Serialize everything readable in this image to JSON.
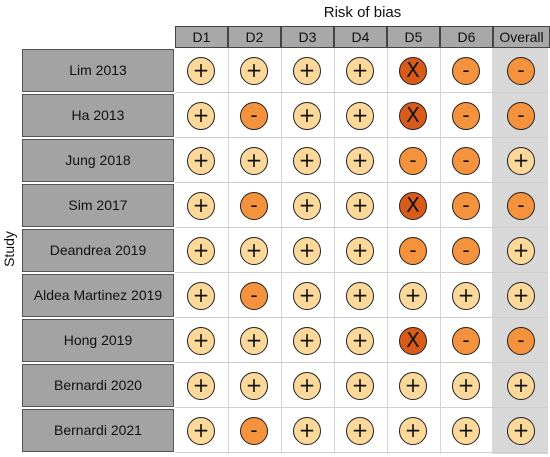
{
  "title": "Risk of bias",
  "ylabel": "Study",
  "columns": [
    "D1",
    "D2",
    "D3",
    "D4",
    "D5",
    "D6",
    "Overall"
  ],
  "judgement_styles": {
    "+": {
      "class": "low",
      "icon": "plus-icon",
      "color": "#fcd99a"
    },
    "-": {
      "class": "some",
      "icon": "minus-icon",
      "color": "#f5923e"
    },
    "X": {
      "class": "high",
      "icon": "x-icon",
      "color": "#d95b1a"
    }
  },
  "chart_data": {
    "type": "table",
    "rows": [
      {
        "study": "Lim 2013",
        "judgements": [
          "+",
          "+",
          "+",
          "+",
          "X",
          "-",
          "-"
        ]
      },
      {
        "study": "Ha 2013",
        "judgements": [
          "+",
          "-",
          "+",
          "+",
          "X",
          "-",
          "-"
        ]
      },
      {
        "study": "Jung 2018",
        "judgements": [
          "+",
          "+",
          "+",
          "+",
          "-",
          "-",
          "+"
        ]
      },
      {
        "study": "Sim 2017",
        "judgements": [
          "+",
          "-",
          "+",
          "+",
          "X",
          "-",
          "-"
        ]
      },
      {
        "study": "Deandrea 2019",
        "judgements": [
          "+",
          "+",
          "+",
          "+",
          "-",
          "-",
          "+"
        ]
      },
      {
        "study": "Aldea Martinez 2019",
        "judgements": [
          "+",
          "-",
          "+",
          "+",
          "+",
          "+",
          "+"
        ]
      },
      {
        "study": "Hong 2019",
        "judgements": [
          "+",
          "+",
          "+",
          "+",
          "X",
          "-",
          "-"
        ]
      },
      {
        "study": "Bernardi 2020",
        "judgements": [
          "+",
          "+",
          "+",
          "+",
          "+",
          "+",
          "+"
        ]
      },
      {
        "study": "Bernardi 2021",
        "judgements": [
          "+",
          "-",
          "+",
          "+",
          "+",
          "+",
          "+"
        ]
      }
    ]
  }
}
